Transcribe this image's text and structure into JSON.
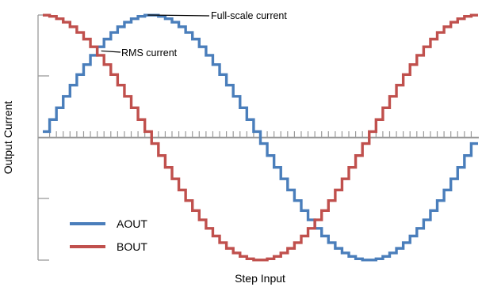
{
  "chart_data": {
    "type": "line",
    "title": "",
    "xlabel": "Step Input",
    "ylabel": "Output Current",
    "ylim": [
      -1,
      1
    ],
    "x_range_degrees": [
      0,
      360
    ],
    "steps_per_quarter": 16,
    "grid": false,
    "legend_position": "bottom-left",
    "series": [
      {
        "name": "AOUT",
        "function": "sine",
        "color": "#4a7ebb"
      },
      {
        "name": "BOUT",
        "function": "cosine",
        "color": "#c0504d"
      }
    ],
    "annotations": [
      {
        "text": "Full-scale current",
        "at_x_degrees": 90,
        "at_y": 1.0
      },
      {
        "text": "RMS current",
        "at_x_degrees": 45,
        "at_y": 0.707
      }
    ],
    "axis_color": "#9a9a9a"
  }
}
